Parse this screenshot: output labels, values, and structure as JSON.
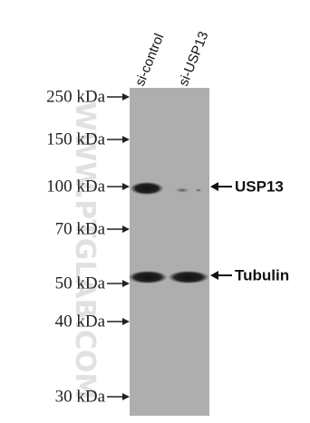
{
  "lanes": [
    "si-control",
    "si-USP13"
  ],
  "markers": [
    "250 kDa",
    "150 kDa",
    "100 kDa",
    "70 kDa",
    "50 kDa",
    "40 kDa",
    "30 kDa"
  ],
  "bands": [
    "USP13",
    "Tubulin"
  ],
  "watermark": "WWW.PTGLAB.COM"
}
